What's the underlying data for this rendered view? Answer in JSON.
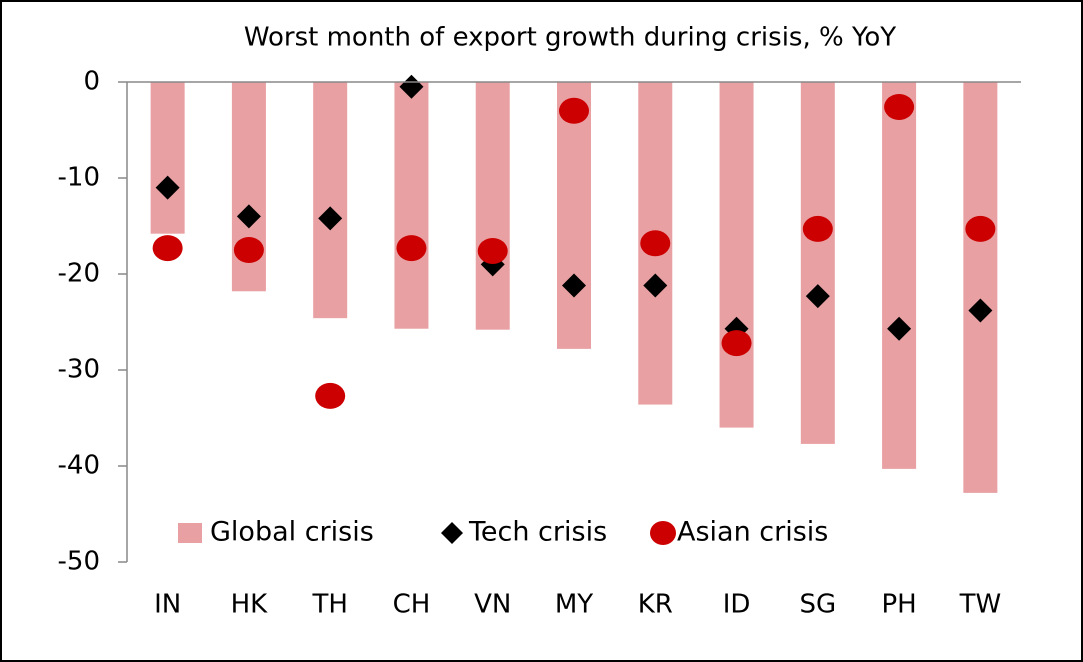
{
  "chart_data": {
    "type": "bar-dot",
    "title": "Worst month of export growth during crisis, % YoY",
    "categories": [
      "IN",
      "HK",
      "TH",
      "CH",
      "VN",
      "MY",
      "KR",
      "ID",
      "SG",
      "PH",
      "TW"
    ],
    "series": [
      {
        "name": "Global crisis",
        "color": "#e8a0a3",
        "mark": "bar",
        "values": [
          -15.8,
          -21.8,
          -24.6,
          -25.7,
          -25.8,
          -27.8,
          -33.6,
          -36,
          -37.7,
          -40.3,
          -42.8
        ]
      },
      {
        "name": "Tech crisis",
        "color": "#000000",
        "mark": "diamond",
        "values": [
          -11,
          -14,
          -14.2,
          -0.5,
          -19,
          -21.2,
          -21.2,
          -25.7,
          -22.3,
          -25.7,
          -23.8
        ]
      },
      {
        "name": "Asian crisis",
        "color": "#cc0000",
        "mark": "circle",
        "values": [
          -17.3,
          -17.5,
          -32.7,
          -17.3,
          -17.6,
          -3,
          -16.8,
          -27.2,
          -15.3,
          -2.6,
          -15.3
        ]
      }
    ],
    "ylim": [
      0,
      -50
    ],
    "yticks": [
      0,
      -10,
      -20,
      -30,
      -40,
      -50
    ],
    "grid": false,
    "legend": "bottom-left"
  }
}
